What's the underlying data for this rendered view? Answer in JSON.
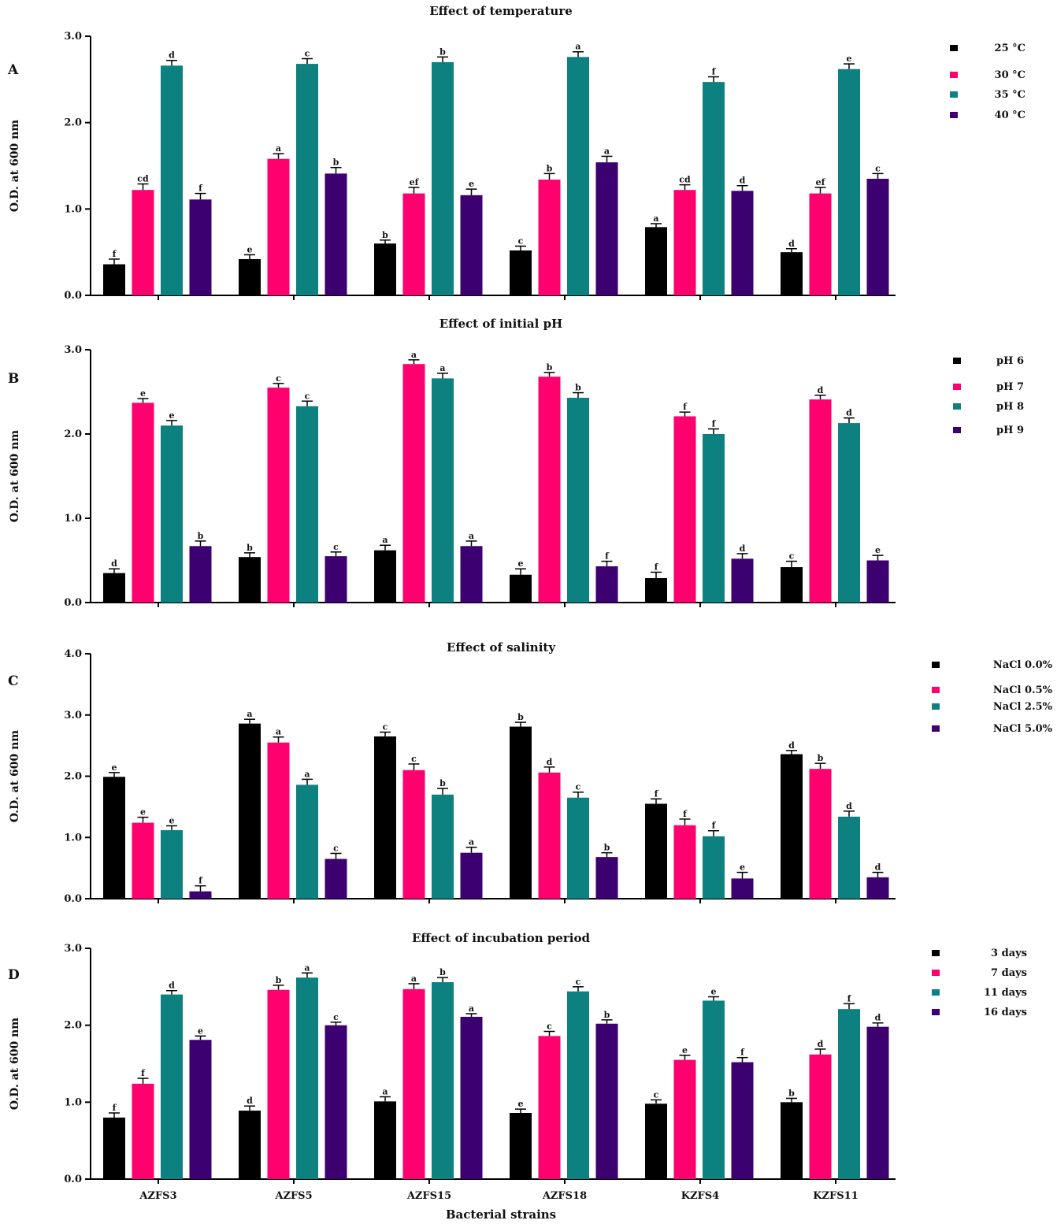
{
  "figure": {
    "xlabel": "Bacterial strains",
    "ylabel": "O.D. at 600 nm",
    "categories": [
      "AZFS3",
      "AZFS5",
      "AZFS15",
      "AZFS18",
      "KZFS4",
      "KZFS11"
    ],
    "colors": [
      "#000000",
      "#ff006e",
      "#0d8080",
      "#3d0070"
    ]
  },
  "chart_data": [
    {
      "type": "bar",
      "panel": "A",
      "title": "Effect of temperature",
      "ylabel": "O.D. at 600 nm",
      "ylim": [
        0,
        3
      ],
      "yticks": [
        "0.0",
        "1.0",
        "2.0",
        "3.0"
      ],
      "legend_position": "right",
      "categories": [
        "AZFS3",
        "AZFS5",
        "AZFS15",
        "AZFS18",
        "KZFS4",
        "KZFS11"
      ],
      "series": [
        {
          "name": "25 °C",
          "color": "#000000",
          "values": [
            0.36,
            0.42,
            0.6,
            0.52,
            0.79,
            0.5
          ],
          "errors": [
            0.06,
            0.05,
            0.04,
            0.05,
            0.04,
            0.04
          ],
          "letters": [
            "f",
            "e",
            "b",
            "c",
            "a",
            "d"
          ]
        },
        {
          "name": "30 °C",
          "color": "#ff006e",
          "values": [
            1.22,
            1.58,
            1.18,
            1.34,
            1.22,
            1.18
          ],
          "errors": [
            0.07,
            0.06,
            0.07,
            0.07,
            0.06,
            0.07
          ],
          "letters": [
            "cd",
            "a",
            "ef",
            "b",
            "cd",
            "ef"
          ]
        },
        {
          "name": "35 °C",
          "color": "#0d8080",
          "values": [
            2.66,
            2.68,
            2.7,
            2.76,
            2.47,
            2.62
          ],
          "errors": [
            0.06,
            0.06,
            0.06,
            0.06,
            0.06,
            0.06
          ],
          "letters": [
            "d",
            "c",
            "b",
            "a",
            "f",
            "e"
          ]
        },
        {
          "name": "40 °C",
          "color": "#3d0070",
          "values": [
            1.11,
            1.41,
            1.16,
            1.54,
            1.21,
            1.35
          ],
          "errors": [
            0.07,
            0.07,
            0.07,
            0.07,
            0.06,
            0.06
          ],
          "letters": [
            "f",
            "b",
            "e",
            "a",
            "d",
            "c"
          ]
        }
      ]
    },
    {
      "type": "bar",
      "panel": "B",
      "title": "Effect of initial pH",
      "ylabel": "O.D. at 600 nm",
      "ylim": [
        0,
        3
      ],
      "yticks": [
        "0.0",
        "1.0",
        "2.0",
        "3.0"
      ],
      "legend_position": "right",
      "categories": [
        "AZFS3",
        "AZFS5",
        "AZFS15",
        "AZFS18",
        "KZFS4",
        "KZFS11"
      ],
      "series": [
        {
          "name": "pH 6",
          "color": "#000000",
          "values": [
            0.35,
            0.54,
            0.62,
            0.33,
            0.29,
            0.42
          ],
          "errors": [
            0.05,
            0.05,
            0.06,
            0.07,
            0.07,
            0.07
          ],
          "letters": [
            "d",
            "b",
            "a",
            "e",
            "f",
            "c"
          ]
        },
        {
          "name": "pH 7",
          "color": "#ff006e",
          "values": [
            2.37,
            2.55,
            2.83,
            2.68,
            2.21,
            2.41
          ],
          "errors": [
            0.05,
            0.05,
            0.05,
            0.05,
            0.05,
            0.05
          ],
          "letters": [
            "e",
            "c",
            "a",
            "b",
            "f",
            "d"
          ]
        },
        {
          "name": "pH 8",
          "color": "#0d8080",
          "values": [
            2.1,
            2.33,
            2.66,
            2.43,
            2.0,
            2.13
          ],
          "errors": [
            0.06,
            0.06,
            0.06,
            0.06,
            0.06,
            0.06
          ],
          "letters": [
            "e",
            "c",
            "a",
            "b",
            "f",
            "d"
          ]
        },
        {
          "name": "pH 9",
          "color": "#3d0070",
          "values": [
            0.67,
            0.55,
            0.67,
            0.43,
            0.52,
            0.5
          ],
          "errors": [
            0.06,
            0.05,
            0.06,
            0.06,
            0.06,
            0.06
          ],
          "letters": [
            "b",
            "c",
            "a",
            "f",
            "d",
            "e"
          ]
        }
      ]
    },
    {
      "type": "bar",
      "panel": "C",
      "title": "Effect of salinity",
      "ylabel": "O.D. at 600 nm",
      "ylim": [
        0,
        4
      ],
      "yticks": [
        "0.0",
        "1.0",
        "2.0",
        "3.0",
        "4.0"
      ],
      "legend_position": "right",
      "categories": [
        "AZFS3",
        "AZFS5",
        "AZFS15",
        "AZFS18",
        "KZFS4",
        "KZFS11"
      ],
      "series": [
        {
          "name": "NaCl 0.0%",
          "color": "#000000",
          "values": [
            1.99,
            2.86,
            2.65,
            2.81,
            1.55,
            2.36
          ],
          "errors": [
            0.07,
            0.07,
            0.07,
            0.07,
            0.08,
            0.06
          ],
          "letters": [
            "e",
            "a",
            "c",
            "b",
            "f",
            "d"
          ]
        },
        {
          "name": "NaCl 0.5%",
          "color": "#ff006e",
          "values": [
            1.24,
            2.55,
            2.1,
            2.06,
            1.2,
            2.12
          ],
          "errors": [
            0.09,
            0.09,
            0.1,
            0.09,
            0.1,
            0.09
          ],
          "letters": [
            "e",
            "a",
            "c",
            "d",
            "f",
            "b"
          ]
        },
        {
          "name": "NaCl 2.5%",
          "color": "#0d8080",
          "values": [
            1.12,
            1.86,
            1.7,
            1.65,
            1.02,
            1.34
          ],
          "errors": [
            0.07,
            0.09,
            0.1,
            0.09,
            0.09,
            0.09
          ],
          "letters": [
            "e",
            "a",
            "b",
            "c",
            "f",
            "d"
          ]
        },
        {
          "name": "NaCl 5.0%",
          "color": "#3d0070",
          "values": [
            0.12,
            0.65,
            0.75,
            0.68,
            0.33,
            0.35
          ],
          "errors": [
            0.09,
            0.09,
            0.09,
            0.07,
            0.1,
            0.08
          ],
          "letters": [
            "f",
            "c",
            "a",
            "b",
            "e",
            "d"
          ]
        }
      ]
    },
    {
      "type": "bar",
      "panel": "D",
      "title": "Effect of incubation period",
      "xlabel": "Bacterial strains",
      "ylabel": "O.D. at 600 nm",
      "ylim": [
        0,
        3
      ],
      "yticks": [
        "0.0",
        "1.0",
        "2.0",
        "3.0"
      ],
      "legend_position": "right",
      "categories": [
        "AZFS3",
        "AZFS5",
        "AZFS15",
        "AZFS18",
        "KZFS4",
        "KZFS11"
      ],
      "series": [
        {
          "name": "3 days",
          "color": "#000000",
          "values": [
            0.8,
            0.89,
            1.01,
            0.86,
            0.98,
            1.0
          ],
          "errors": [
            0.06,
            0.06,
            0.06,
            0.05,
            0.05,
            0.05
          ],
          "letters": [
            "f",
            "d",
            "a",
            "e",
            "c",
            "b"
          ]
        },
        {
          "name": "7 days",
          "color": "#ff006e",
          "values": [
            1.24,
            2.46,
            2.47,
            1.86,
            1.55,
            1.62
          ],
          "errors": [
            0.07,
            0.06,
            0.07,
            0.06,
            0.06,
            0.07
          ],
          "letters": [
            "f",
            "b",
            "a",
            "c",
            "e",
            "d"
          ]
        },
        {
          "name": "11 days",
          "color": "#0d8080",
          "values": [
            2.4,
            2.62,
            2.56,
            2.44,
            2.32,
            2.21
          ],
          "errors": [
            0.05,
            0.06,
            0.06,
            0.06,
            0.05,
            0.07
          ],
          "letters": [
            "d",
            "a",
            "b",
            "c",
            "e",
            "f"
          ]
        },
        {
          "name": "16 days",
          "color": "#3d0070",
          "values": [
            1.81,
            2.0,
            2.11,
            2.02,
            1.52,
            1.98
          ],
          "errors": [
            0.05,
            0.04,
            0.04,
            0.05,
            0.06,
            0.05
          ],
          "letters": [
            "e",
            "c",
            "a",
            "b",
            "f",
            "d"
          ]
        }
      ]
    }
  ]
}
